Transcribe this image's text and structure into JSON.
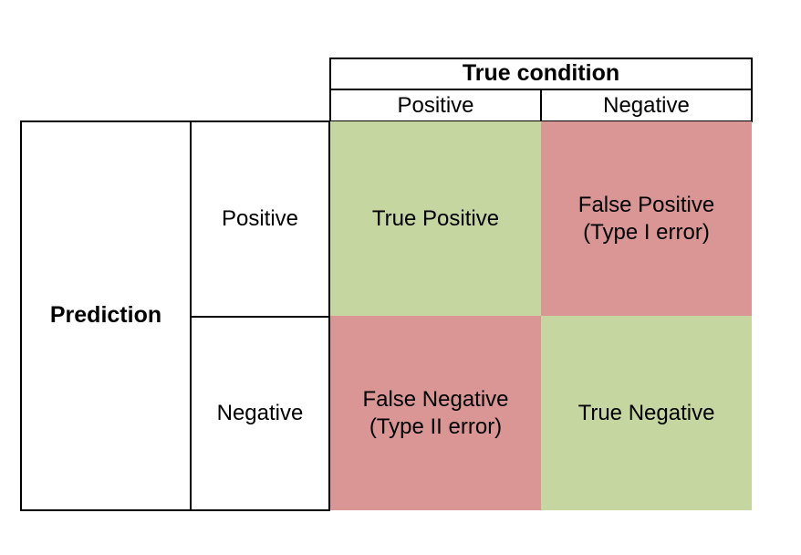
{
  "header": {
    "title": "True condition",
    "positive": "Positive",
    "negative": "Negative"
  },
  "rows": {
    "title": "Prediction",
    "positive": "Positive",
    "negative": "Negative"
  },
  "cells": {
    "true_positive": "True Positive",
    "false_positive": "False Positive\n(Type I error)",
    "false_negative": "False Negative\n(Type II error)",
    "true_negative": "True Negative"
  },
  "colors": {
    "correct": "#c5d6a0",
    "error": "#d99694"
  }
}
